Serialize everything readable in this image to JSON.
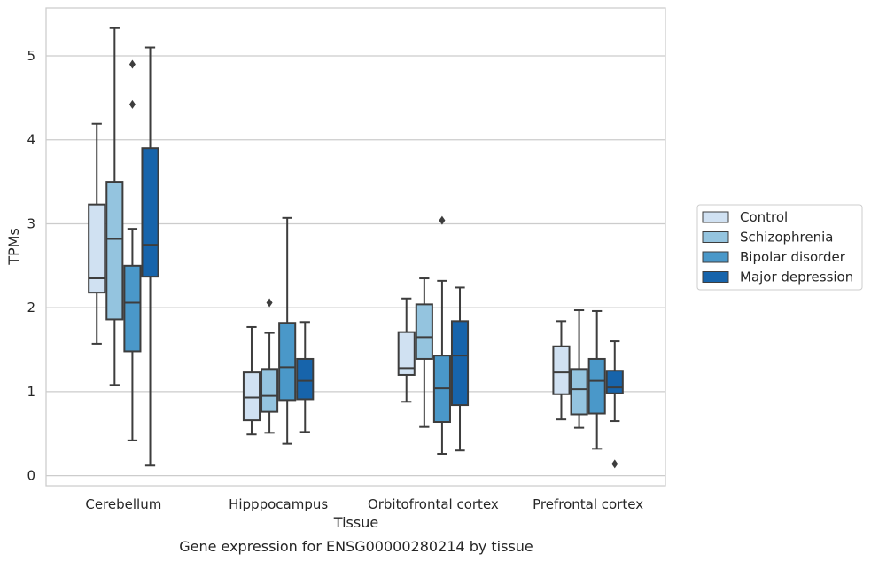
{
  "chart_data": {
    "type": "box",
    "title": "",
    "caption": "Gene expression for ENSG00000280214 by tissue",
    "xlabel": "Tissue",
    "ylabel": "TPMs",
    "ylim": [
      -0.12,
      5.57
    ],
    "yticks": [
      0,
      1,
      2,
      3,
      4,
      5
    ],
    "grid": "horizontal",
    "legend_placement": "right",
    "categories": [
      "Cerebellum",
      "Hipppocampus",
      "Orbitofrontal cortex",
      "Prefrontal cortex"
    ],
    "series": [
      {
        "name": "Control",
        "color": "#d0e1f2",
        "boxes": [
          {
            "whislo": 1.57,
            "q1": 2.18,
            "med": 2.35,
            "q3": 3.23,
            "whishi": 4.19,
            "fliers": []
          },
          {
            "whislo": 0.49,
            "q1": 0.66,
            "med": 0.93,
            "q3": 1.23,
            "whishi": 1.77,
            "fliers": []
          },
          {
            "whislo": 0.88,
            "q1": 1.2,
            "med": 1.28,
            "q3": 1.71,
            "whishi": 2.11,
            "fliers": []
          },
          {
            "whislo": 0.67,
            "q1": 0.97,
            "med": 1.23,
            "q3": 1.54,
            "whishi": 1.84,
            "fliers": []
          }
        ]
      },
      {
        "name": "Schizophrenia",
        "color": "#94c4df",
        "boxes": [
          {
            "whislo": 1.08,
            "q1": 1.86,
            "med": 2.82,
            "q3": 3.5,
            "whishi": 5.33,
            "fliers": []
          },
          {
            "whislo": 0.51,
            "q1": 0.76,
            "med": 0.95,
            "q3": 1.27,
            "whishi": 1.7,
            "fliers": [
              2.06
            ]
          },
          {
            "whislo": 0.58,
            "q1": 1.39,
            "med": 1.65,
            "q3": 2.04,
            "whishi": 2.35,
            "fliers": []
          },
          {
            "whislo": 0.57,
            "q1": 0.73,
            "med": 1.03,
            "q3": 1.27,
            "whishi": 1.97,
            "fliers": []
          }
        ]
      },
      {
        "name": "Bipolar disorder",
        "color": "#4a98c9",
        "boxes": [
          {
            "whislo": 0.42,
            "q1": 1.48,
            "med": 2.06,
            "q3": 2.5,
            "whishi": 2.94,
            "fliers": [
              4.42,
              4.9
            ]
          },
          {
            "whislo": 0.38,
            "q1": 0.9,
            "med": 1.29,
            "q3": 1.82,
            "whishi": 3.07,
            "fliers": []
          },
          {
            "whislo": 0.26,
            "q1": 0.64,
            "med": 1.04,
            "q3": 1.43,
            "whishi": 2.32,
            "fliers": [
              3.04
            ]
          },
          {
            "whislo": 0.32,
            "q1": 0.74,
            "med": 1.13,
            "q3": 1.39,
            "whishi": 1.96,
            "fliers": []
          }
        ]
      },
      {
        "name": "Major depression",
        "color": "#1764ab",
        "boxes": [
          {
            "whislo": 0.12,
            "q1": 2.37,
            "med": 2.75,
            "q3": 3.9,
            "whishi": 5.1,
            "fliers": []
          },
          {
            "whislo": 0.52,
            "q1": 0.91,
            "med": 1.13,
            "q3": 1.39,
            "whishi": 1.83,
            "fliers": []
          },
          {
            "whislo": 0.3,
            "q1": 0.84,
            "med": 1.43,
            "q3": 1.84,
            "whishi": 2.24,
            "fliers": []
          },
          {
            "whislo": 0.65,
            "q1": 0.98,
            "med": 1.05,
            "q3": 1.25,
            "whishi": 1.6,
            "fliers": [
              0.14
            ]
          }
        ]
      }
    ]
  }
}
